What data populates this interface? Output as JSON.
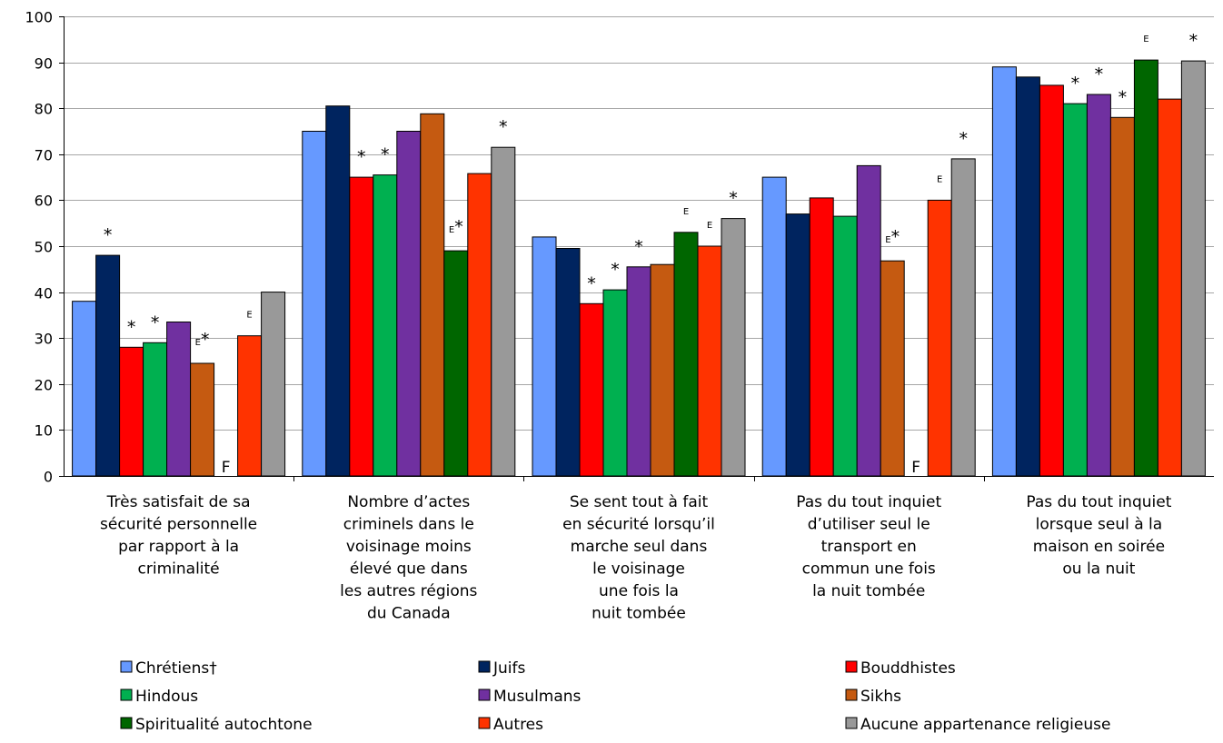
{
  "chart_data": {
    "type": "bar",
    "ylim": [
      0,
      100
    ],
    "yticks": [
      0,
      10,
      20,
      30,
      40,
      50,
      60,
      70,
      80,
      90,
      100
    ],
    "grid": true,
    "legend_position": "bottom",
    "categories": [
      [
        "Très satisfait de sa",
        "sécurité personnelle",
        "par rapport à la",
        "criminalité"
      ],
      [
        "Nombre d’actes",
        "criminels dans le",
        "voisinage moins",
        "élevé que dans",
        "les autres régions",
        "du Canada"
      ],
      [
        "Se sent tout à fait",
        "en sécurité lorsqu’il",
        "marche seul dans",
        "le voisinage",
        "une fois la",
        "nuit tombée"
      ],
      [
        "Pas du tout inquiet",
        "d’utiliser seul le",
        "transport en",
        "commun une fois",
        "la nuit tombée"
      ],
      [
        "Pas du tout inquiet",
        "lorsque seul à la",
        "maison en soirée",
        "ou la nuit"
      ]
    ],
    "series": [
      {
        "name": "Chrétiens†",
        "color": "#6699FF",
        "values": [
          38,
          75,
          52,
          65,
          89
        ],
        "annotations": [
          "",
          "",
          "",
          "",
          ""
        ]
      },
      {
        "name": "Juifs",
        "color": "#00245F",
        "values": [
          48,
          80.5,
          49.5,
          57,
          86.8
        ],
        "annotations": [
          "*",
          "",
          "",
          "",
          ""
        ]
      },
      {
        "name": "Bouddhistes",
        "color": "#FF0000",
        "values": [
          28,
          65,
          37.5,
          60.5,
          85
        ],
        "annotations": [
          "*",
          "*",
          "*",
          "",
          ""
        ]
      },
      {
        "name": "Hindous",
        "color": "#00B050",
        "values": [
          29,
          65.5,
          40.5,
          56.5,
          81
        ],
        "annotations": [
          "*",
          "*",
          "*",
          "",
          "*"
        ]
      },
      {
        "name": "Musulmans",
        "color": "#7030A0",
        "values": [
          33.5,
          75,
          45.5,
          67.5,
          83
        ],
        "annotations": [
          "",
          "",
          "*",
          "",
          "*"
        ]
      },
      {
        "name": "Sikhs",
        "color": "#C55A11",
        "values": [
          24.5,
          78.8,
          46,
          46.8,
          78
        ],
        "annotations": [
          "E*",
          "",
          "",
          "E*",
          "*"
        ]
      },
      {
        "name": "Spiritualité autochtone",
        "color": "#006600",
        "values": [
          null,
          49,
          53,
          0,
          90.5
        ],
        "annotations": [
          "F",
          "E*",
          "E",
          "F",
          "E"
        ]
      },
      {
        "name": "Autres",
        "color": "#FF3300",
        "values": [
          30.5,
          65.8,
          50,
          60,
          82
        ],
        "annotations": [
          "E",
          "",
          "E",
          "E",
          ""
        ]
      },
      {
        "name": "Aucune appartenance religieuse",
        "color": "#999999",
        "values": [
          40,
          71.5,
          56,
          69,
          90.3
        ],
        "annotations": [
          "",
          "*",
          "*",
          "*",
          "*"
        ]
      }
    ]
  }
}
